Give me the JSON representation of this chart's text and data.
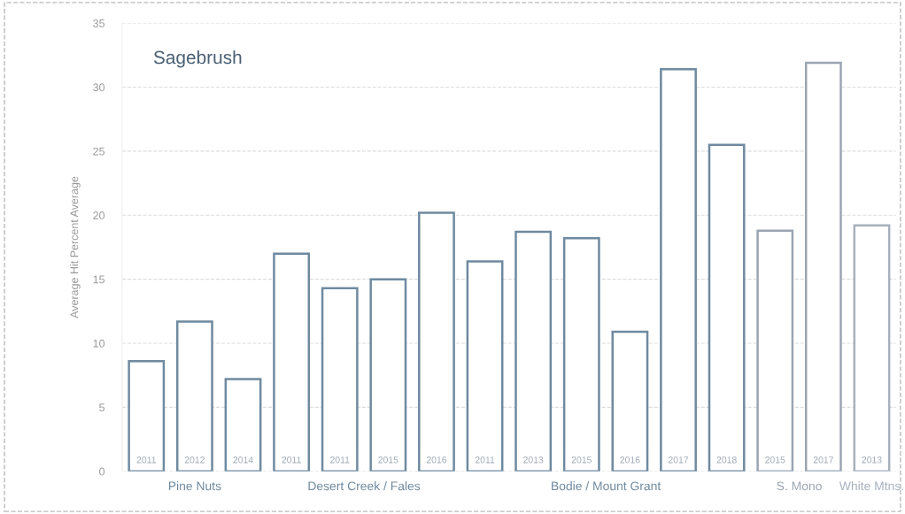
{
  "chart_data": {
    "type": "bar",
    "title": "Sagebrush",
    "ylabel": "Average Hit Percent Average",
    "categories": [
      "2011",
      "2012",
      "2014",
      "2011",
      "2011",
      "2015",
      "2016",
      "2011",
      "2013",
      "2015",
      "2016",
      "2017",
      "2018",
      "2015",
      "2017",
      "2013"
    ],
    "series": [
      {
        "name": "Pine Nuts",
        "color": "#6f8aa0",
        "values": [
          8.6,
          11.7,
          7.2,
          null,
          null,
          null,
          null,
          null,
          null,
          null,
          null,
          null,
          null,
          null,
          null,
          null
        ]
      },
      {
        "name": "Desert Creek / Fales",
        "color": "#6f8aa0",
        "values": [
          null,
          null,
          null,
          17.0,
          14.3,
          15.0,
          20.2,
          null,
          null,
          null,
          null,
          null,
          null,
          null,
          null,
          null
        ]
      },
      {
        "name": "Bodie / Mount Grant",
        "color": "#6f8aa0",
        "values": [
          null,
          null,
          null,
          null,
          null,
          null,
          null,
          16.4,
          18.7,
          18.2,
          10.9,
          31.4,
          25.5,
          null,
          null,
          null
        ]
      },
      {
        "name": "S. Mono",
        "color": "#9aa5b3",
        "values": [
          null,
          null,
          null,
          null,
          null,
          null,
          null,
          null,
          null,
          null,
          null,
          null,
          null,
          18.8,
          31.9,
          null
        ]
      },
      {
        "name": "White Mtns.",
        "color": "#a7b0bd",
        "values": [
          null,
          null,
          null,
          null,
          null,
          null,
          null,
          null,
          null,
          null,
          null,
          null,
          null,
          null,
          null,
          19.2
        ]
      }
    ],
    "ylim": [
      0,
      35
    ],
    "yticks": [
      0,
      5,
      10,
      15,
      20,
      25,
      30,
      35
    ],
    "grid": "y",
    "legend": false
  }
}
